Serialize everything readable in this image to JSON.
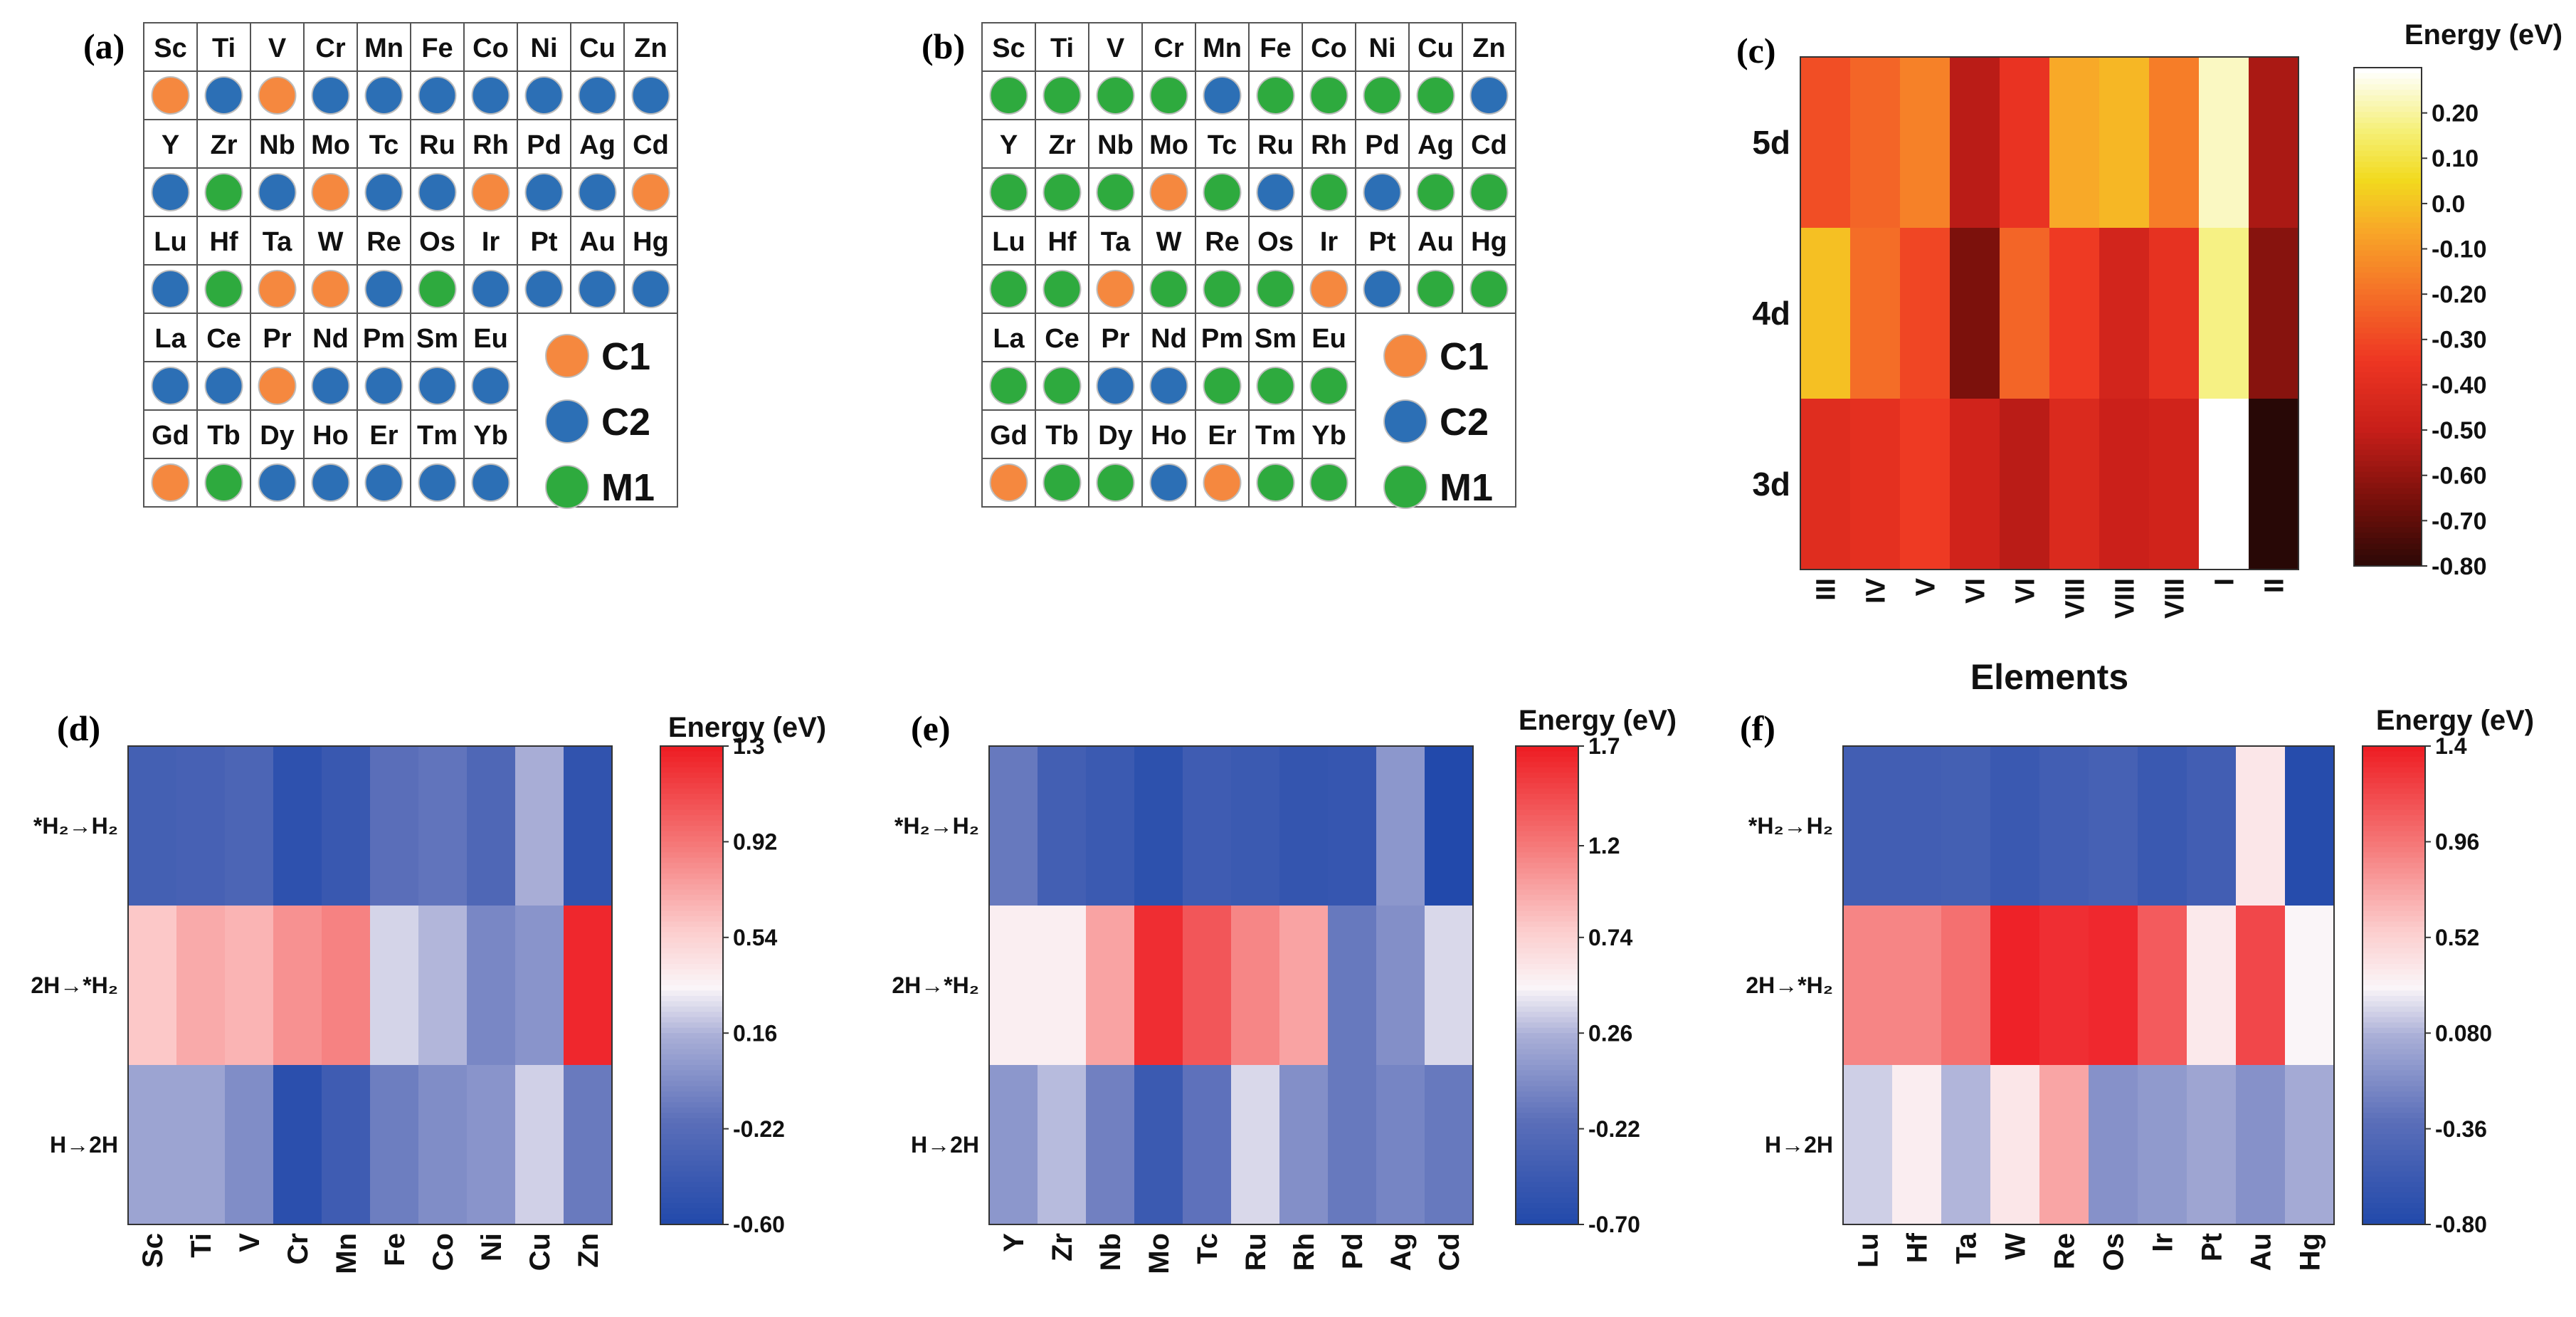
{
  "colors": {
    "C1": "#F5883F",
    "C2": "#2C6FB5",
    "M1": "#2EAA3E",
    "circle_outline": "#bdbdbd"
  },
  "panels": {
    "a": {
      "label": "(a)",
      "rows": [
        {
          "symbols": [
            "Sc",
            "Ti",
            "V",
            "Cr",
            "Mn",
            "Fe",
            "Co",
            "Ni",
            "Cu",
            "Zn"
          ],
          "classes": [
            "C1",
            "C2",
            "C1",
            "C2",
            "C2",
            "C2",
            "C2",
            "C2",
            "C2",
            "C2"
          ]
        },
        {
          "symbols": [
            "Y",
            "Zr",
            "Nb",
            "Mo",
            "Tc",
            "Ru",
            "Rh",
            "Pd",
            "Ag",
            "Cd"
          ],
          "classes": [
            "C2",
            "M1",
            "C2",
            "C1",
            "C2",
            "C2",
            "C1",
            "C2",
            "C2",
            "C1"
          ]
        },
        {
          "symbols": [
            "Lu",
            "Hf",
            "Ta",
            "W",
            "Re",
            "Os",
            "Ir",
            "Pt",
            "Au",
            "Hg"
          ],
          "classes": [
            "C2",
            "M1",
            "C1",
            "C1",
            "C2",
            "M1",
            "C2",
            "C2",
            "C2",
            "C2"
          ]
        },
        {
          "symbols": [
            "La",
            "Ce",
            "Pr",
            "Nd",
            "Pm",
            "Sm",
            "Eu"
          ],
          "classes": [
            "C2",
            "C2",
            "C1",
            "C2",
            "C2",
            "C2",
            "C2"
          ]
        },
        {
          "symbols": [
            "Gd",
            "Tb",
            "Dy",
            "Ho",
            "Er",
            "Tm",
            "Yb"
          ],
          "classes": [
            "C1",
            "M1",
            "C2",
            "C2",
            "C2",
            "C2",
            "C2"
          ]
        }
      ],
      "legend": [
        {
          "key": "C1",
          "label": "C1"
        },
        {
          "key": "C2",
          "label": "C2"
        },
        {
          "key": "M1",
          "label": "M1"
        }
      ]
    },
    "b": {
      "label": "(b)",
      "rows": [
        {
          "symbols": [
            "Sc",
            "Ti",
            "V",
            "Cr",
            "Mn",
            "Fe",
            "Co",
            "Ni",
            "Cu",
            "Zn"
          ],
          "classes": [
            "M1",
            "M1",
            "M1",
            "M1",
            "C2",
            "M1",
            "M1",
            "M1",
            "M1",
            "C2"
          ]
        },
        {
          "symbols": [
            "Y",
            "Zr",
            "Nb",
            "Mo",
            "Tc",
            "Ru",
            "Rh",
            "Pd",
            "Ag",
            "Cd"
          ],
          "classes": [
            "M1",
            "M1",
            "M1",
            "C1",
            "M1",
            "C2",
            "M1",
            "C2",
            "M1",
            "M1"
          ]
        },
        {
          "symbols": [
            "Lu",
            "Hf",
            "Ta",
            "W",
            "Re",
            "Os",
            "Ir",
            "Pt",
            "Au",
            "Hg"
          ],
          "classes": [
            "M1",
            "M1",
            "C1",
            "M1",
            "M1",
            "M1",
            "C1",
            "C2",
            "M1",
            "M1"
          ]
        },
        {
          "symbols": [
            "La",
            "Ce",
            "Pr",
            "Nd",
            "Pm",
            "Sm",
            "Eu"
          ],
          "classes": [
            "M1",
            "M1",
            "C2",
            "C2",
            "M1",
            "M1",
            "M1"
          ]
        },
        {
          "symbols": [
            "Gd",
            "Tb",
            "Dy",
            "Ho",
            "Er",
            "Tm",
            "Yb"
          ],
          "classes": [
            "C1",
            "M1",
            "M1",
            "C2",
            "C1",
            "M1",
            "M1"
          ]
        }
      ],
      "legend": [
        {
          "key": "C1",
          "label": "C1"
        },
        {
          "key": "C2",
          "label": "C2"
        },
        {
          "key": "M1",
          "label": "M1"
        }
      ]
    }
  },
  "chart_data": [
    {
      "id": "c",
      "panel_label": "(c)",
      "type": "heatmap",
      "colorbar_title": "Energy (eV)",
      "xlabel": "Elements",
      "x_categories": [
        "III",
        "IV",
        "V",
        "VI",
        "VI",
        "VIII",
        "VIII",
        "VIII",
        "I",
        "II"
      ],
      "y_categories": [
        "5d",
        "4d",
        "3d"
      ],
      "values": [
        [
          -0.28,
          -0.22,
          -0.15,
          -0.52,
          -0.36,
          -0.05,
          -0.02,
          -0.16,
          0.24,
          -0.55
        ],
        [
          0.0,
          -0.2,
          -0.3,
          -0.64,
          -0.22,
          -0.33,
          -0.45,
          -0.37,
          0.18,
          -0.62
        ],
        [
          -0.4,
          -0.38,
          -0.33,
          -0.46,
          -0.52,
          -0.42,
          -0.48,
          -0.46,
          0.3,
          -0.8
        ]
      ],
      "colorbar_ticks": [
        "0.20",
        "0.10",
        "0.0",
        "-0.10",
        "-0.20",
        "-0.30",
        "-0.40",
        "-0.50",
        "-0.60",
        "-0.70",
        "-0.80"
      ],
      "colorbar_tick_values": [
        0.2,
        0.1,
        0.0,
        -0.1,
        -0.2,
        -0.3,
        -0.4,
        -0.5,
        -0.6,
        -0.7,
        -0.8
      ],
      "vmin": -0.8,
      "vmax": 0.3,
      "colormap": "hot"
    },
    {
      "id": "d",
      "panel_label": "(d)",
      "type": "heatmap",
      "colorbar_title": "Energy (eV)",
      "x_categories": [
        "Sc",
        "Ti",
        "V",
        "Cr",
        "Mn",
        "Fe",
        "Co",
        "Ni",
        "Cu",
        "Zn"
      ],
      "y_categories": [
        "*H₂→H₂",
        "2H→*H₂",
        "H→2H"
      ],
      "values": [
        [
          -0.34,
          -0.32,
          -0.28,
          -0.5,
          -0.42,
          -0.18,
          -0.15,
          -0.26,
          0.15,
          -0.48
        ],
        [
          0.6,
          0.72,
          0.68,
          0.82,
          0.88,
          0.26,
          0.18,
          -0.05,
          0.02,
          1.26
        ],
        [
          0.1,
          0.1,
          -0.02,
          -0.52,
          -0.38,
          -0.1,
          -0.02,
          0.02,
          0.25,
          -0.12
        ]
      ],
      "colorbar_ticks": [
        "1.3",
        "0.92",
        "0.54",
        "0.16",
        "-0.22",
        "-0.60"
      ],
      "colorbar_tick_values": [
        1.3,
        0.92,
        0.54,
        0.16,
        -0.22,
        -0.6
      ],
      "vmin": -0.6,
      "vmax": 1.3,
      "colormap": "bwr"
    },
    {
      "id": "e",
      "panel_label": "(e)",
      "type": "heatmap",
      "colorbar_title": "Energy (eV)",
      "x_categories": [
        "Y",
        "Zr",
        "Nb",
        "Mo",
        "Tc",
        "Ru",
        "Rh",
        "Pd",
        "Ag",
        "Cd"
      ],
      "y_categories": [
        "*H₂→H₂",
        "2H→*H₂",
        "H→2H"
      ],
      "values": [
        [
          -0.1,
          -0.38,
          -0.45,
          -0.58,
          -0.42,
          -0.45,
          -0.52,
          -0.5,
          0.1,
          -0.68
        ],
        [
          0.55,
          0.55,
          1.0,
          1.62,
          1.4,
          1.15,
          1.0,
          -0.1,
          0.05,
          0.4
        ],
        [
          0.1,
          0.3,
          -0.05,
          -0.45,
          -0.15,
          0.4,
          0.05,
          -0.1,
          -0.02,
          -0.1
        ]
      ],
      "colorbar_ticks": [
        "1.7",
        "1.2",
        "0.74",
        "0.26",
        "-0.22",
        "-0.70"
      ],
      "colorbar_tick_values": [
        1.7,
        1.2,
        0.74,
        0.26,
        -0.22,
        -0.7
      ],
      "vmin": -0.7,
      "vmax": 1.7,
      "colormap": "bwr"
    },
    {
      "id": "f",
      "panel_label": "(f)",
      "type": "heatmap",
      "colorbar_title": "Energy (eV)",
      "x_categories": [
        "Lu",
        "Hf",
        "Ta",
        "W",
        "Re",
        "Os",
        "Ir",
        "Pt",
        "Au",
        "Hg"
      ],
      "y_categories": [
        "*H₂→H₂",
        "2H→*H₂",
        "H→2H"
      ],
      "values": [
        [
          -0.52,
          -0.52,
          -0.5,
          -0.58,
          -0.52,
          -0.48,
          -0.58,
          -0.52,
          0.4,
          -0.75
        ],
        [
          0.9,
          0.9,
          1.0,
          1.38,
          1.32,
          1.35,
          1.1,
          0.38,
          1.2,
          0.3
        ],
        [
          0.18,
          0.35,
          0.1,
          0.4,
          0.75,
          -0.1,
          -0.05,
          0.02,
          -0.1,
          0.05
        ]
      ],
      "colorbar_ticks": [
        "1.4",
        "0.96",
        "0.52",
        "0.080",
        "-0.36",
        "-0.80"
      ],
      "colorbar_tick_values": [
        1.4,
        0.96,
        0.52,
        0.08,
        -0.36,
        -0.8
      ],
      "vmin": -0.8,
      "vmax": 1.4,
      "colormap": "bwr"
    }
  ]
}
